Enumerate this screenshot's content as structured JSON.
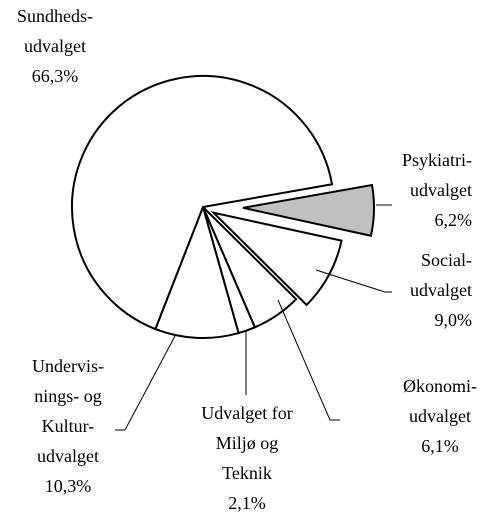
{
  "chart_data": {
    "type": "pie",
    "categories": [
      "Sundheds-\nudvalget",
      "Psykiatri-\nudvalget",
      "Social-\nudvalget",
      "Økonomi-\nudvalget",
      "Udvalget for\nMiljø og\nTeknik",
      "Undervis-\nnings- og\nKultur-\nudvalget"
    ],
    "values": [
      66.3,
      6.2,
      9.0,
      6.1,
      2.1,
      10.3
    ],
    "value_labels": [
      "66,3%",
      "6,2%",
      "9,0%",
      "6,1%",
      "2,1%",
      "10,3%"
    ],
    "colors": [
      "#ffffff",
      "#c0c0c0",
      "#ffffff",
      "#ffffff",
      "#ffffff",
      "#ffffff"
    ]
  }
}
